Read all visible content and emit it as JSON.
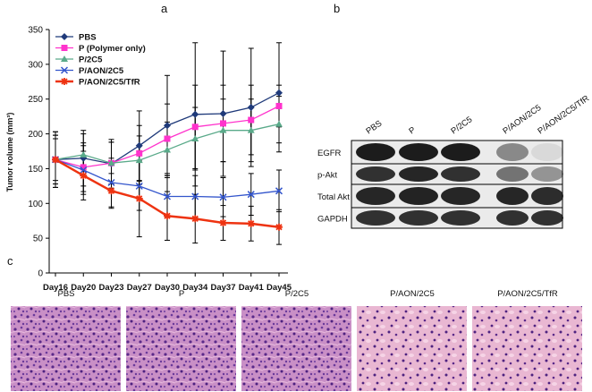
{
  "chart_data": {
    "type": "line",
    "panel_label": "a",
    "y_label": "Tumor volume (mm³)",
    "categories": [
      "Day16",
      "Day20",
      "Day23",
      "Day27",
      "Day30",
      "Day34",
      "Day37",
      "Day41",
      "Day45"
    ],
    "ylim": [
      0,
      350
    ],
    "yticks": [
      0,
      50,
      100,
      150,
      200,
      250,
      300,
      350
    ],
    "legend": "upper left",
    "series": [
      {
        "name": "PBS",
        "color": "#1f3a7a",
        "marker": "diamond",
        "values": [
          163,
          165,
          157,
          183,
          212,
          228,
          229,
          238,
          259
        ],
        "errors": [
          40,
          40,
          35,
          50,
          72,
          103,
          90,
          85,
          72
        ]
      },
      {
        "name": "P (Polymer only)",
        "color": "#ff33cc",
        "marker": "square",
        "values": [
          163,
          152,
          158,
          172,
          193,
          210,
          215,
          220,
          240
        ],
        "errors": [
          35,
          35,
          30,
          40,
          50,
          60,
          55,
          50,
          30
        ]
      },
      {
        "name": "P/2C5",
        "color": "#5aaa8a",
        "marker": "triangle",
        "values": [
          163,
          170,
          158,
          162,
          177,
          193,
          205,
          205,
          214
        ],
        "errors": [
          30,
          30,
          30,
          35,
          40,
          45,
          45,
          45,
          40
        ]
      },
      {
        "name": "P/AON/2C5",
        "color": "#3355cc",
        "marker": "x",
        "values": [
          163,
          148,
          130,
          125,
          110,
          110,
          109,
          113,
          118
        ],
        "errors": [
          35,
          35,
          35,
          35,
          30,
          30,
          28,
          30,
          30
        ]
      },
      {
        "name": "P/AON/2C5/TfR",
        "color": "#ee3311",
        "marker": "star",
        "values": [
          163,
          140,
          118,
          107,
          82,
          78,
          72,
          71,
          66
        ],
        "errors": [
          40,
          35,
          25,
          55,
          35,
          35,
          25,
          25,
          25
        ]
      }
    ]
  },
  "blot": {
    "panel_label": "b",
    "lanes": [
      "PBS",
      "P",
      "P/2C5",
      "P/AON/2C5",
      "P/AON/2C5/TfR"
    ],
    "rows": [
      "EGFR",
      "p-Akt",
      "Total Akt",
      "GAPDH"
    ]
  },
  "histology": {
    "panel_label": "c",
    "labels": [
      "PBS",
      "P",
      "P/2C5",
      "P/AON/2C5",
      "P/AON/2C5/TfR"
    ]
  }
}
